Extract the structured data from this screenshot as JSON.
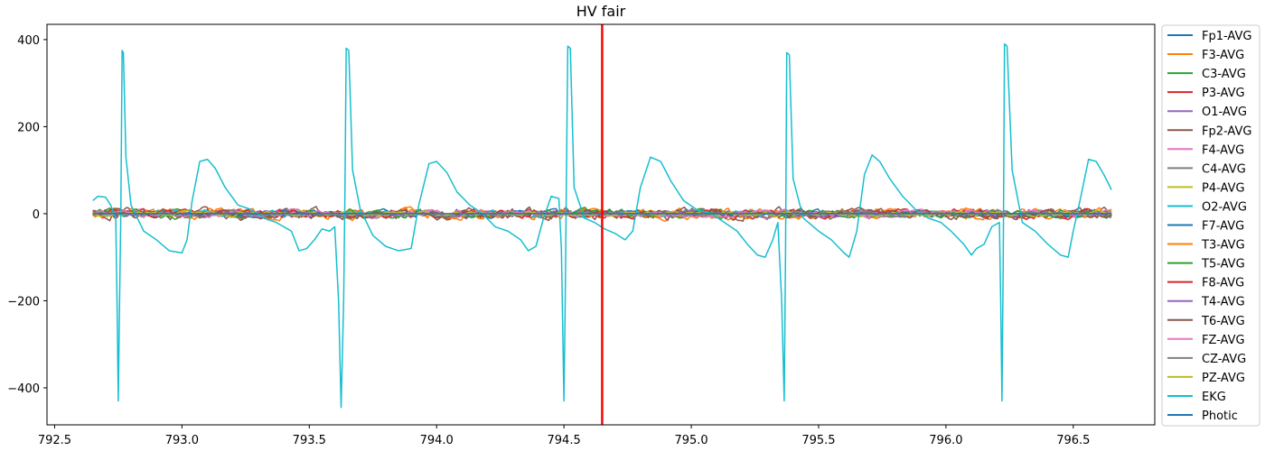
{
  "chart_data": {
    "type": "line",
    "title": "HV fair",
    "xlabel": "",
    "ylabel": "",
    "xlim": [
      792.47,
      796.82
    ],
    "ylim": [
      -485,
      435
    ],
    "x_ticks": [
      792.5,
      793.0,
      793.5,
      794.0,
      794.5,
      795.0,
      795.5,
      796.0,
      796.5
    ],
    "x_tick_labels": [
      "792.5",
      "793.0",
      "793.5",
      "794.0",
      "794.5",
      "795.0",
      "795.5",
      "796.0",
      "796.5"
    ],
    "y_ticks": [
      -400,
      -200,
      0,
      200,
      400
    ],
    "y_tick_labels": [
      "−400",
      "−200",
      "0",
      "200",
      "400"
    ],
    "grid": false,
    "legend_position": "outside-right",
    "time_range": [
      792.65,
      796.65
    ],
    "marker_line": {
      "x": 794.65,
      "color": "#ff0000"
    },
    "series": [
      {
        "name": "Fp1-AVG",
        "color": "#1f77b4",
        "kind": "noise",
        "amplitude": 8
      },
      {
        "name": "F3-AVG",
        "color": "#ff7f0e",
        "kind": "noise",
        "amplitude": 12
      },
      {
        "name": "C3-AVG",
        "color": "#2ca02c",
        "kind": "noise",
        "amplitude": 9
      },
      {
        "name": "P3-AVG",
        "color": "#d62728",
        "kind": "noise",
        "amplitude": 10
      },
      {
        "name": "O1-AVG",
        "color": "#9467bd",
        "kind": "noise",
        "amplitude": 7
      },
      {
        "name": "Fp2-AVG",
        "color": "#8c564b",
        "kind": "noise",
        "amplitude": 14
      },
      {
        "name": "F4-AVG",
        "color": "#e377c2",
        "kind": "noise",
        "amplitude": 9
      },
      {
        "name": "C4-AVG",
        "color": "#7f7f7f",
        "kind": "noise",
        "amplitude": 7
      },
      {
        "name": "P4-AVG",
        "color": "#bcbd22",
        "kind": "noise",
        "amplitude": 7
      },
      {
        "name": "O2-AVG",
        "color": "#17becf",
        "kind": "noise",
        "amplitude": 9
      },
      {
        "name": "F7-AVG",
        "color": "#1f77b4",
        "kind": "noise",
        "amplitude": 8
      },
      {
        "name": "T3-AVG",
        "color": "#ff7f0e",
        "kind": "noise",
        "amplitude": 12
      },
      {
        "name": "T5-AVG",
        "color": "#2ca02c",
        "kind": "noise",
        "amplitude": 10
      },
      {
        "name": "F8-AVG",
        "color": "#d62728",
        "kind": "noise",
        "amplitude": 11
      },
      {
        "name": "T4-AVG",
        "color": "#9467bd",
        "kind": "noise",
        "amplitude": 7
      },
      {
        "name": "T6-AVG",
        "color": "#8c564b",
        "kind": "noise",
        "amplitude": 13
      },
      {
        "name": "FZ-AVG",
        "color": "#e377c2",
        "kind": "noise",
        "amplitude": 8
      },
      {
        "name": "CZ-AVG",
        "color": "#7f7f7f",
        "kind": "noise",
        "amplitude": 6
      },
      {
        "name": "PZ-AVG",
        "color": "#bcbd22",
        "kind": "noise",
        "amplitude": 6
      },
      {
        "name": "EKG",
        "color": "#17becf",
        "kind": "points",
        "points": [
          [
            792.65,
            30
          ],
          [
            792.67,
            40
          ],
          [
            792.7,
            38
          ],
          [
            792.72,
            20
          ],
          [
            792.74,
            -10
          ],
          [
            792.745,
            -200
          ],
          [
            792.75,
            -430
          ],
          [
            792.755,
            -200
          ],
          [
            792.76,
            0
          ],
          [
            792.765,
            375
          ],
          [
            792.77,
            370
          ],
          [
            792.78,
            130
          ],
          [
            792.8,
            20
          ],
          [
            792.85,
            -40
          ],
          [
            792.9,
            -60
          ],
          [
            792.95,
            -85
          ],
          [
            793.0,
            -90
          ],
          [
            793.02,
            -60
          ],
          [
            793.04,
            30
          ],
          [
            793.07,
            120
          ],
          [
            793.1,
            125
          ],
          [
            793.13,
            105
          ],
          [
            793.17,
            60
          ],
          [
            793.22,
            20
          ],
          [
            793.27,
            10
          ],
          [
            793.32,
            -10
          ],
          [
            793.37,
            -20
          ],
          [
            793.43,
            -40
          ],
          [
            793.46,
            -85
          ],
          [
            793.49,
            -80
          ],
          [
            793.52,
            -60
          ],
          [
            793.55,
            -35
          ],
          [
            793.58,
            -40
          ],
          [
            793.6,
            -30
          ],
          [
            793.615,
            -200
          ],
          [
            793.625,
            -445
          ],
          [
            793.635,
            -200
          ],
          [
            793.64,
            50
          ],
          [
            793.645,
            380
          ],
          [
            793.655,
            375
          ],
          [
            793.67,
            100
          ],
          [
            793.7,
            10
          ],
          [
            793.75,
            -50
          ],
          [
            793.8,
            -75
          ],
          [
            793.85,
            -85
          ],
          [
            793.9,
            -80
          ],
          [
            793.93,
            20
          ],
          [
            793.97,
            115
          ],
          [
            794.0,
            120
          ],
          [
            794.04,
            95
          ],
          [
            794.08,
            50
          ],
          [
            794.13,
            20
          ],
          [
            794.18,
            0
          ],
          [
            794.23,
            -30
          ],
          [
            794.28,
            -40
          ],
          [
            794.33,
            -60
          ],
          [
            794.36,
            -85
          ],
          [
            794.39,
            -75
          ],
          [
            794.42,
            -10
          ],
          [
            794.45,
            40
          ],
          [
            794.48,
            35
          ],
          [
            794.49,
            -80
          ],
          [
            794.5,
            -430
          ],
          [
            794.505,
            -200
          ],
          [
            794.51,
            100
          ],
          [
            794.515,
            385
          ],
          [
            794.525,
            380
          ],
          [
            794.54,
            60
          ],
          [
            794.58,
            -10
          ],
          [
            794.62,
            -20
          ],
          [
            794.66,
            -35
          ],
          [
            794.7,
            -45
          ],
          [
            794.74,
            -60
          ],
          [
            794.77,
            -40
          ],
          [
            794.8,
            60
          ],
          [
            794.84,
            130
          ],
          [
            794.88,
            120
          ],
          [
            794.92,
            75
          ],
          [
            794.97,
            30
          ],
          [
            795.02,
            10
          ],
          [
            795.08,
            0
          ],
          [
            795.13,
            -20
          ],
          [
            795.18,
            -40
          ],
          [
            795.22,
            -70
          ],
          [
            795.26,
            -95
          ],
          [
            795.29,
            -100
          ],
          [
            795.32,
            -60
          ],
          [
            795.34,
            -20
          ],
          [
            795.355,
            -200
          ],
          [
            795.365,
            -430
          ],
          [
            795.37,
            -100
          ],
          [
            795.375,
            370
          ],
          [
            795.385,
            365
          ],
          [
            795.4,
            80
          ],
          [
            795.44,
            -10
          ],
          [
            795.5,
            -40
          ],
          [
            795.55,
            -60
          ],
          [
            795.6,
            -90
          ],
          [
            795.62,
            -100
          ],
          [
            795.65,
            -40
          ],
          [
            795.68,
            90
          ],
          [
            795.71,
            135
          ],
          [
            795.74,
            120
          ],
          [
            795.78,
            80
          ],
          [
            795.83,
            40
          ],
          [
            795.88,
            10
          ],
          [
            795.93,
            -10
          ],
          [
            795.98,
            -20
          ],
          [
            796.02,
            -40
          ],
          [
            796.07,
            -70
          ],
          [
            796.1,
            -95
          ],
          [
            796.12,
            -80
          ],
          [
            796.15,
            -70
          ],
          [
            796.18,
            -30
          ],
          [
            796.21,
            -20
          ],
          [
            796.215,
            -200
          ],
          [
            796.22,
            -430
          ],
          [
            796.225,
            -100
          ],
          [
            796.23,
            390
          ],
          [
            796.24,
            385
          ],
          [
            796.26,
            100
          ],
          [
            796.3,
            -20
          ],
          [
            796.35,
            -40
          ],
          [
            796.4,
            -70
          ],
          [
            796.45,
            -95
          ],
          [
            796.48,
            -100
          ],
          [
            796.5,
            -40
          ],
          [
            796.53,
            40
          ],
          [
            796.56,
            125
          ],
          [
            796.59,
            120
          ],
          [
            796.62,
            90
          ],
          [
            796.65,
            55
          ]
        ]
      },
      {
        "name": "Photic",
        "color": "#1f77b4",
        "kind": "flat",
        "value": 0
      }
    ]
  }
}
